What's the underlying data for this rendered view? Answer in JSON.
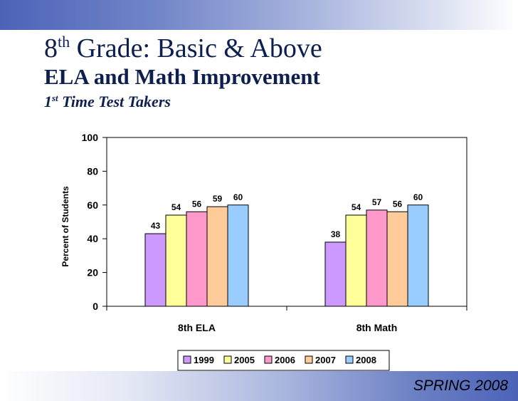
{
  "slide": {
    "title_main": "Grade: Basic & Above",
    "title_grade_number": "8",
    "title_grade_suffix": "th",
    "subtitle": "ELA and Math Improvement",
    "caption_number": "1",
    "caption_suffix": "st",
    "caption_text": "Time Test Takers",
    "footer": "SPRING 2008",
    "band_color": "#4c63b8",
    "title_color": "#0d1f4f"
  },
  "chart_data": {
    "type": "bar",
    "title": "",
    "xlabel": "",
    "ylabel": "Percent of Students",
    "ylim": [
      0,
      100
    ],
    "yticks": [
      0,
      20,
      40,
      60,
      80,
      100
    ],
    "grid": false,
    "legend_position": "bottom",
    "categories": [
      "8th ELA",
      "8th Math"
    ],
    "series": [
      {
        "name": "1999",
        "values": [
          43,
          38
        ],
        "color": "#cc99ff"
      },
      {
        "name": "2005",
        "values": [
          54,
          54
        ],
        "color": "#ffff99"
      },
      {
        "name": "2006",
        "values": [
          56,
          57
        ],
        "color": "#ff99cc"
      },
      {
        "name": "2007",
        "values": [
          59,
          56
        ],
        "color": "#ffcc99"
      },
      {
        "name": "2008",
        "values": [
          60,
          60
        ],
        "color": "#99ccff"
      }
    ]
  }
}
